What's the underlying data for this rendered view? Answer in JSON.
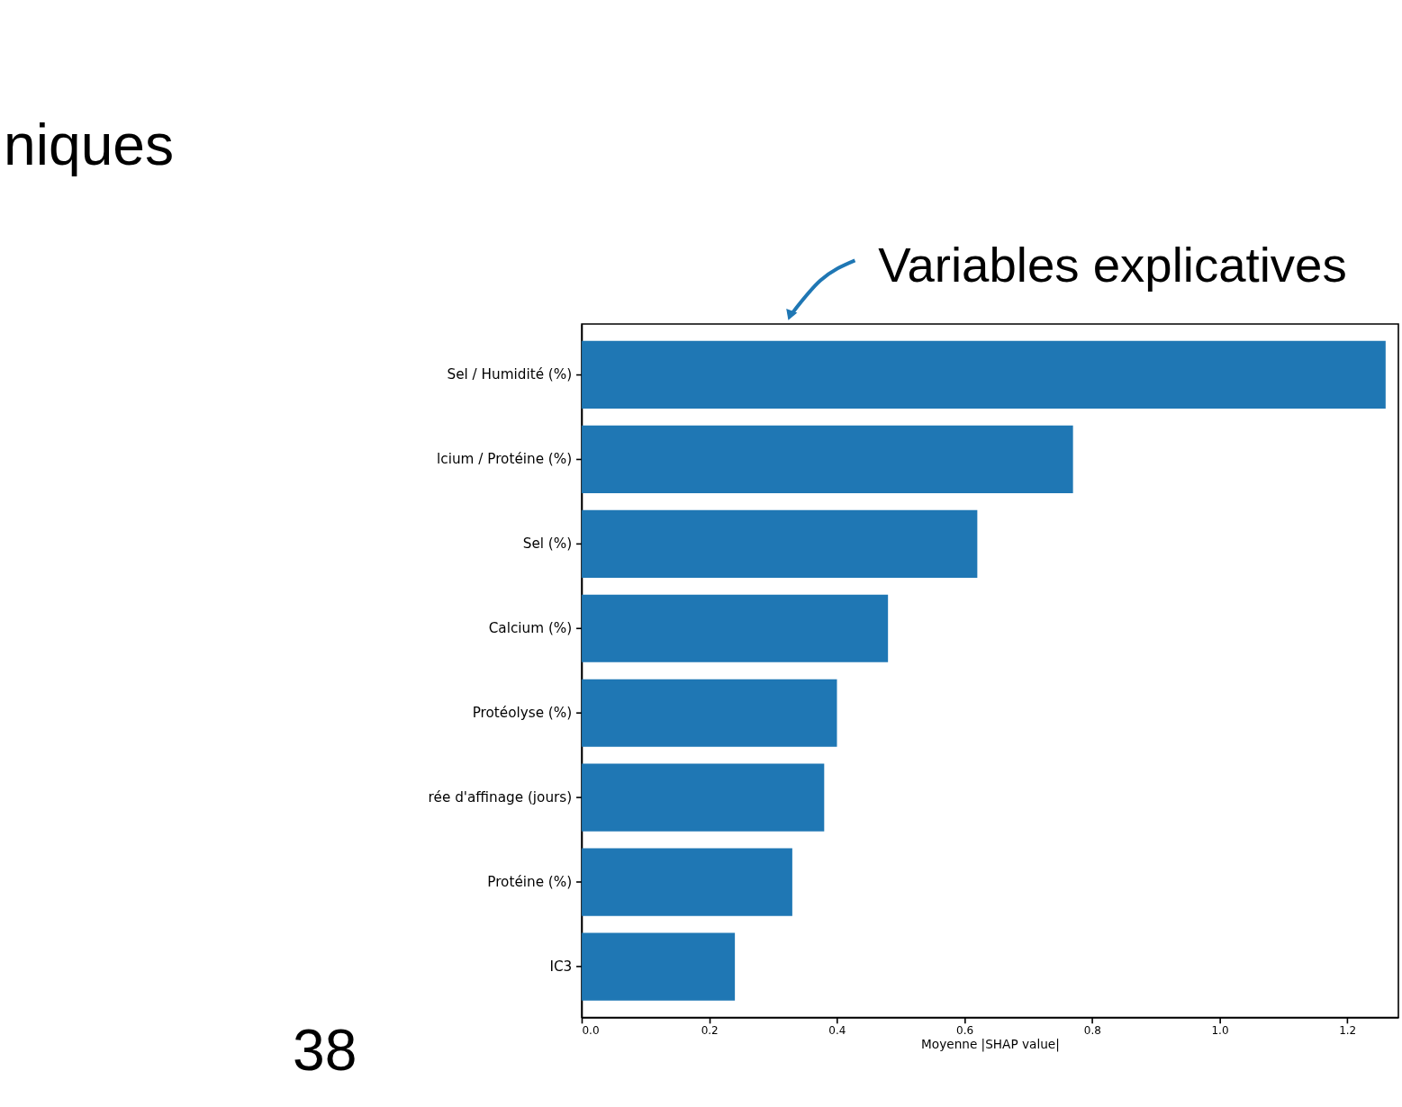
{
  "chart_data": {
    "type": "bar",
    "orientation": "horizontal",
    "title": "niques",
    "xlabel": "Moyenne |SHAP value|",
    "categories": [
      "Sel / Humidité (%)",
      "lcium / Protéine (%)",
      "Sel (%)",
      "Calcium (%)",
      "Protéolyse (%)",
      "rée d'affinage (jours)",
      "Protéine (%)",
      "IC3"
    ],
    "values": [
      1.26,
      0.77,
      0.62,
      0.48,
      0.4,
      0.38,
      0.33,
      0.24
    ],
    "color": "#1f77b4",
    "xlim": [
      0,
      1.28
    ],
    "xticks": [
      {
        "value": 0,
        "label": "0.0"
      },
      {
        "value": 0.2,
        "label": "0.2"
      },
      {
        "value": 0.4,
        "label": "0.4"
      },
      {
        "value": 0.6,
        "label": "0.6"
      },
      {
        "value": 0.8,
        "label": "0.8"
      },
      {
        "value": 1.0,
        "label": "1.0"
      },
      {
        "value": 1.2,
        "label": "1.2"
      }
    ],
    "grid": false,
    "annotations": [
      "Variables explicatives",
      "38"
    ]
  }
}
